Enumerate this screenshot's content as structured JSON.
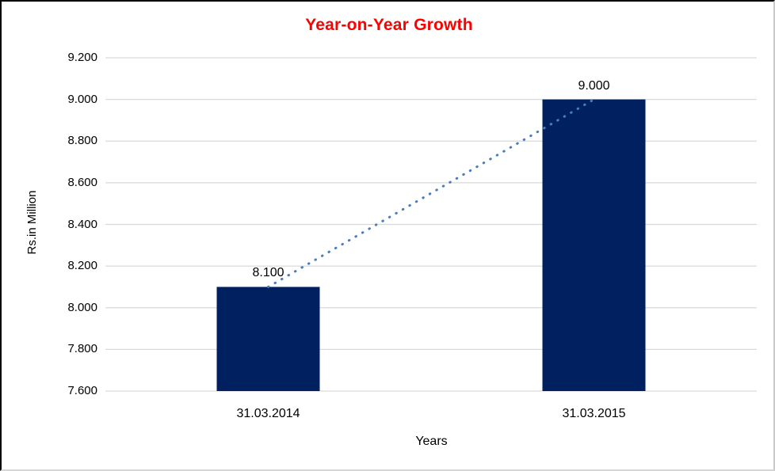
{
  "chart_data": {
    "type": "bar",
    "title": "Year-on-Year Growth",
    "xlabel": "Years",
    "ylabel": "Rs.in Million",
    "categories": [
      "31.03.2014",
      "31.03.2015"
    ],
    "values": [
      8.1,
      9.0
    ],
    "data_labels": [
      "8.100",
      "9.000"
    ],
    "ylim": [
      7.6,
      9.2
    ],
    "ytick_step": 0.2,
    "ytick_labels": [
      "7.600",
      "7.800",
      "8.000",
      "8.200",
      "8.400",
      "8.600",
      "8.800",
      "9.000",
      "9.200"
    ],
    "grid": true,
    "legend": false,
    "trendline": {
      "style": "dotted",
      "from_value": 8.1,
      "to_value": 9.0
    }
  },
  "colors": {
    "bar": "#002060",
    "title": "#ff0000",
    "gridline": "#d9d9d9",
    "trendline": "#4a7ebb",
    "text": "#000000",
    "background": "#ffffff"
  }
}
